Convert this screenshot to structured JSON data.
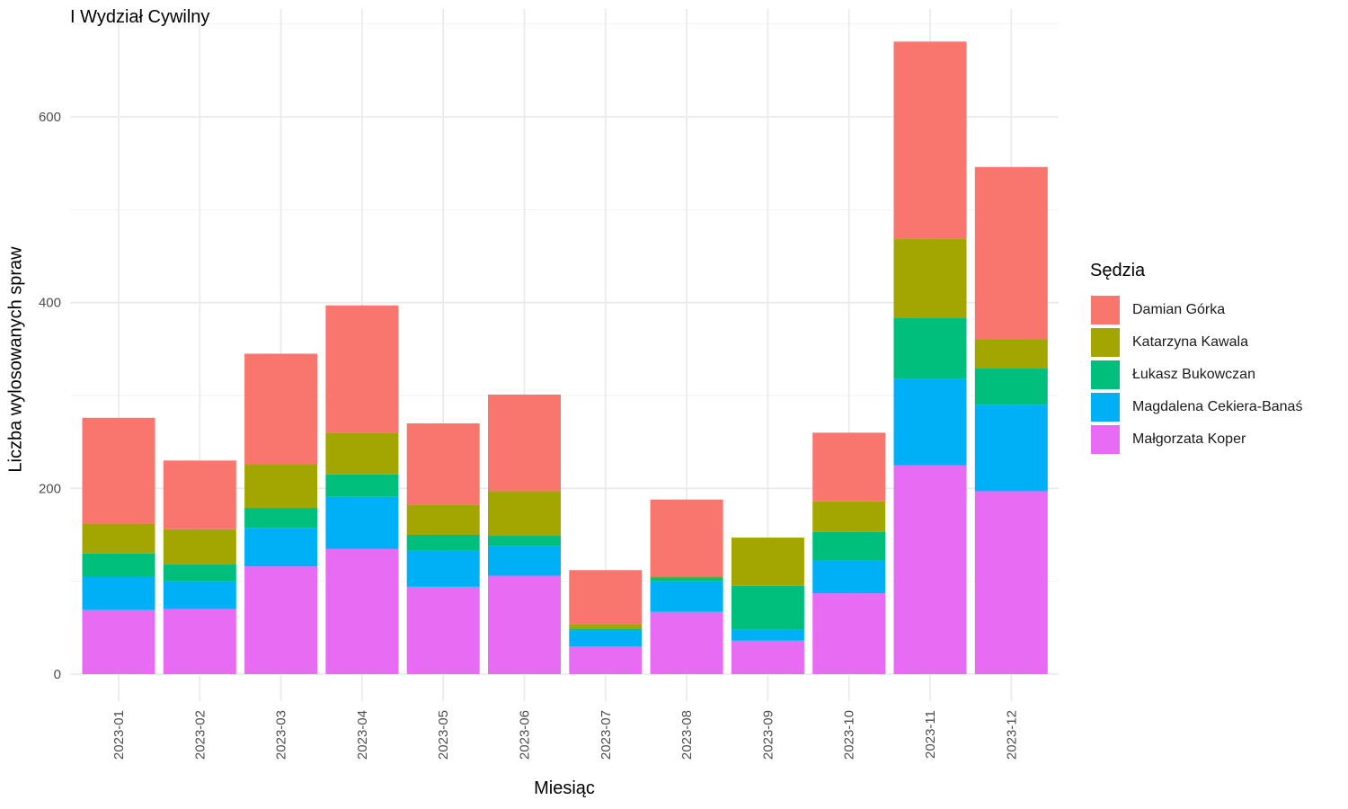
{
  "chart_data": {
    "type": "bar",
    "stacked": true,
    "title": "I Wydział Cywilny",
    "xlabel": "Miesiąc",
    "ylabel": "Liczba wylosowanych spraw",
    "ylim": [
      0,
      700
    ],
    "y_ticks": [
      0,
      200,
      400,
      600
    ],
    "grid": true,
    "legend_title": "Sędzia",
    "legend_position": "right",
    "categories": [
      "2023-01",
      "2023-02",
      "2023-03",
      "2023-04",
      "2023-05",
      "2023-06",
      "2023-07",
      "2023-08",
      "2023-09",
      "2023-10",
      "2023-11",
      "2023-12"
    ],
    "series": [
      {
        "name": "Małgorzata Koper",
        "color": "#E76BF3",
        "values": [
          69,
          70,
          116,
          135,
          94,
          106,
          30,
          67,
          36,
          87,
          225,
          197
        ]
      },
      {
        "name": "Magdalena Cekiera-Banaś",
        "color": "#00B0F6",
        "values": [
          36,
          30,
          41,
          56,
          39,
          32,
          17,
          33,
          12,
          35,
          93,
          93
        ]
      },
      {
        "name": "Łukasz Bukowczan",
        "color": "#00BF7D",
        "values": [
          25,
          18,
          22,
          24,
          17,
          11,
          2,
          4,
          47,
          31,
          66,
          39
        ]
      },
      {
        "name": "Katarzyna Kawala",
        "color": "#A3A500",
        "values": [
          32,
          38,
          47,
          45,
          32,
          48,
          5,
          1,
          52,
          33,
          85,
          31
        ]
      },
      {
        "name": "Damian Górka",
        "color": "#F8766D",
        "values": [
          114,
          74,
          119,
          137,
          88,
          104,
          58,
          83,
          0,
          74,
          212,
          186
        ]
      }
    ],
    "legend_order": [
      "Damian Górka",
      "Katarzyna Kawala",
      "Łukasz Bukowczan",
      "Magdalena Cekiera-Banaś",
      "Małgorzata Koper"
    ]
  }
}
